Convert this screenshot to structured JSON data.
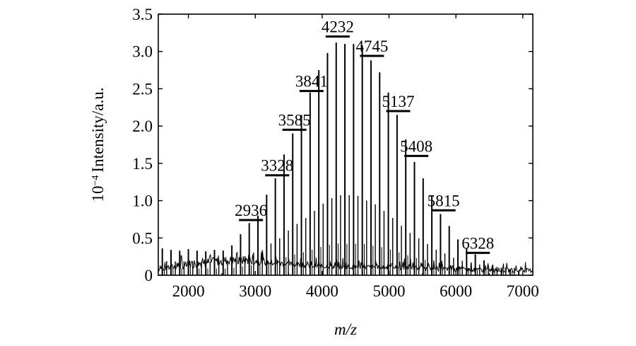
{
  "chart_data": {
    "type": "line",
    "xlabel": "m/z",
    "ylabel_prefix": "10",
    "ylabel_exponent": "−4",
    "ylabel_text": "Intensity/a.u.",
    "xlim": [
      1550,
      7150
    ],
    "ylim": [
      0,
      3.5
    ],
    "xticks": [
      2000,
      3000,
      4000,
      5000,
      6000,
      7000
    ],
    "xtick_labels": [
      "2000",
      "3000",
      "4000",
      "5000",
      "6000",
      "7000"
    ],
    "yticks": [
      0,
      0.5,
      1.0,
      1.5,
      2.0,
      2.5,
      3.0,
      3.5
    ],
    "ytick_labels": [
      "0",
      "0.5",
      "1.0",
      "1.5",
      "2.0",
      "2.5",
      "3.0",
      "3.5"
    ],
    "grid": false,
    "major_peaks": {
      "x": [
        1610,
        1740,
        1870,
        2000,
        2130,
        2260,
        2390,
        2520,
        2650,
        2780,
        2910,
        3040,
        3170,
        3300,
        3430,
        3560,
        3690,
        3820,
        3950,
        4080,
        4210,
        4340,
        4470,
        4600,
        4730,
        4860,
        4990,
        5120,
        5250,
        5380,
        5510,
        5640,
        5770,
        5900,
        6030,
        6160,
        6290,
        6420,
        6550,
        6680,
        6810,
        6940
      ],
      "y": [
        0.36,
        0.34,
        0.33,
        0.35,
        0.33,
        0.32,
        0.34,
        0.33,
        0.4,
        0.55,
        0.7,
        0.8,
        1.08,
        1.3,
        1.62,
        1.9,
        2.15,
        2.45,
        2.75,
        2.98,
        3.12,
        3.1,
        3.1,
        3.08,
        2.88,
        2.72,
        2.45,
        2.15,
        1.82,
        1.52,
        1.3,
        1.06,
        0.82,
        0.66,
        0.48,
        0.36,
        0.28,
        0.2,
        0.14,
        0.1,
        0.08,
        0.06
      ]
    },
    "annotations": [
      {
        "label": "2936",
        "x": 2936,
        "y": 0.74
      },
      {
        "label": "3328",
        "x": 3328,
        "y": 1.34
      },
      {
        "label": "3585",
        "x": 3585,
        "y": 1.95
      },
      {
        "label": "3841",
        "x": 3841,
        "y": 2.47
      },
      {
        "label": "4232",
        "x": 4232,
        "y": 3.2
      },
      {
        "label": "4745",
        "x": 4745,
        "y": 2.94
      },
      {
        "label": "5137",
        "x": 5137,
        "y": 2.2
      },
      {
        "label": "5408",
        "x": 5408,
        "y": 1.6
      },
      {
        "label": "5815",
        "x": 5815,
        "y": 0.87
      },
      {
        "label": "6328",
        "x": 6328,
        "y": 0.3
      }
    ]
  }
}
